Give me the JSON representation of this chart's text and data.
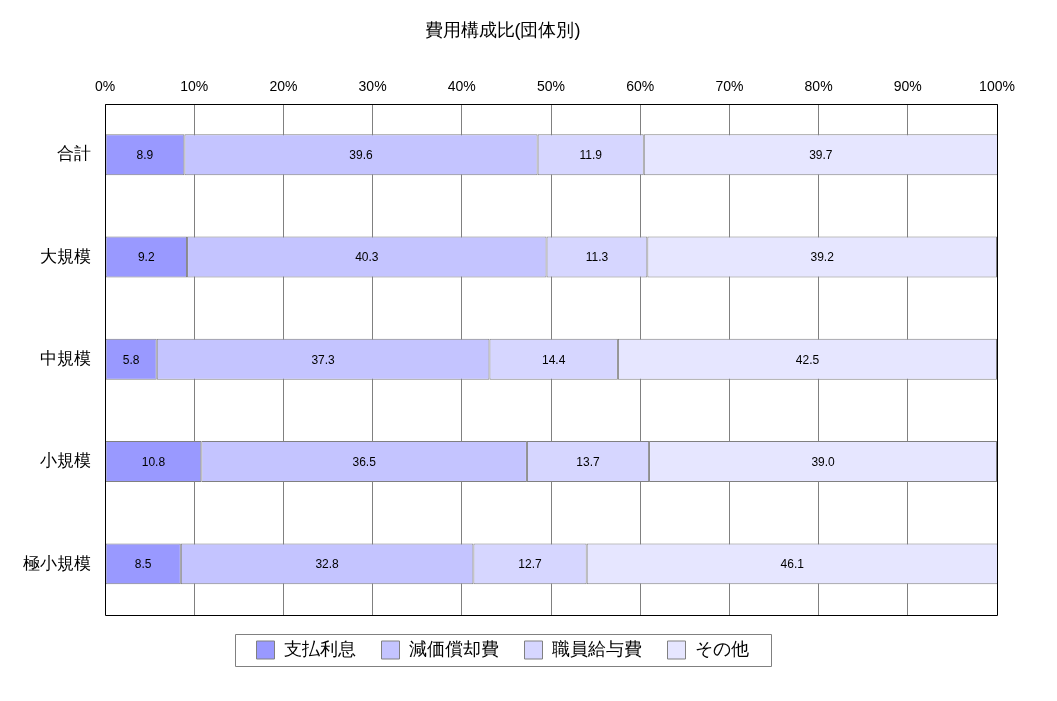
{
  "chart_data": {
    "type": "bar",
    "orientation": "horizontal",
    "stacked": true,
    "title": "費用構成比(団体別)",
    "categories": [
      "合計",
      "大規模",
      "中規模",
      "小規模",
      "極小規模"
    ],
    "series": [
      {
        "name": "支払利息",
        "color": "#9999ff",
        "values": [
          8.9,
          9.2,
          5.8,
          10.8,
          8.5
        ],
        "value_labels": [
          "8.9",
          "9.2",
          "5.8",
          "10.8",
          "8.5"
        ]
      },
      {
        "name": "減価償却費",
        "color": "#c4c4ff",
        "values": [
          39.6,
          40.3,
          37.3,
          36.5,
          32.8
        ],
        "value_labels": [
          "39.6",
          "40.3",
          "37.3",
          "36.5",
          "32.8"
        ]
      },
      {
        "name": "職員給与費",
        "color": "#d6d6ff",
        "values": [
          11.9,
          11.3,
          14.4,
          13.7,
          12.7
        ],
        "value_labels": [
          "11.9",
          "11.3",
          "14.4",
          "13.7",
          "12.7"
        ]
      },
      {
        "name": "その他",
        "color": "#e6e6ff",
        "values": [
          39.7,
          39.2,
          42.5,
          39.0,
          46.1
        ],
        "value_labels": [
          "39.7",
          "39.2",
          "42.5",
          "39.0",
          "46.1"
        ]
      }
    ],
    "xlim": [
      0,
      100
    ],
    "xticks": [
      {
        "value": 0,
        "label": "0%"
      },
      {
        "value": 10,
        "label": "10%"
      },
      {
        "value": 20,
        "label": "20%"
      },
      {
        "value": 30,
        "label": "30%"
      },
      {
        "value": 40,
        "label": "40%"
      },
      {
        "value": 50,
        "label": "50%"
      },
      {
        "value": 60,
        "label": "60%"
      },
      {
        "value": 70,
        "label": "70%"
      },
      {
        "value": 80,
        "label": "80%"
      },
      {
        "value": 90,
        "label": "90%"
      },
      {
        "value": 100,
        "label": "100%"
      }
    ],
    "grid": "x",
    "legend": "bottom"
  }
}
